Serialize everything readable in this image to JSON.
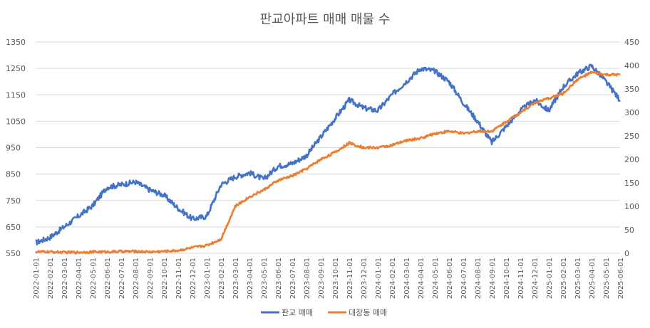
{
  "chart_data": {
    "type": "line",
    "title": "판교아파트 매매 매물 수",
    "x": [
      "2022-01-01",
      "2022-02-01",
      "2022-03-01",
      "2022-04-01",
      "2022-05-01",
      "2022-06-01",
      "2022-07-01",
      "2022-08-01",
      "2022-09-01",
      "2022-10-01",
      "2022-11-01",
      "2022-12-01",
      "2023-01-01",
      "2023-02-01",
      "2023-03-01",
      "2023-04-01",
      "2023-05-01",
      "2023-06-01",
      "2023-07-01",
      "2023-08-01",
      "2023-09-01",
      "2023-10-01",
      "2023-11-01",
      "2023-12-01",
      "2024-01-01",
      "2024-02-01",
      "2024-03-01",
      "2024-04-01",
      "2024-05-01",
      "2024-06-01",
      "2024-07-01",
      "2024-08-01",
      "2024-09-01",
      "2024-10-01",
      "2024-11-01",
      "2024-12-01",
      "2025-01-01",
      "2025-02-01",
      "2025-03-01",
      "2025-04-01",
      "2025-05-01",
      "2025-06-01"
    ],
    "series": [
      {
        "name": "판교 매매",
        "axis": "left",
        "color": "#4472C4",
        "values": [
          590,
          610,
          650,
          690,
          730,
          800,
          810,
          820,
          790,
          770,
          720,
          680,
          690,
          810,
          840,
          855,
          830,
          880,
          890,
          920,
          990,
          1060,
          1130,
          1100,
          1090,
          1150,
          1200,
          1250,
          1240,
          1200,
          1120,
          1050,
          970,
          1030,
          1090,
          1130,
          1090,
          1180,
          1230,
          1260,
          1200,
          1130
        ]
      },
      {
        "name": "대장동 매매",
        "axis": "right",
        "color": "#ED7D31",
        "values": [
          3,
          3,
          2,
          2,
          3,
          3,
          4,
          4,
          3,
          4,
          6,
          12,
          17,
          30,
          100,
          120,
          135,
          155,
          165,
          180,
          200,
          215,
          235,
          225,
          225,
          230,
          240,
          245,
          255,
          260,
          255,
          260,
          260,
          280,
          300,
          320,
          330,
          340,
          370,
          385,
          380,
          380
        ]
      }
    ],
    "y_left": {
      "min": 550,
      "max": 1350,
      "ticks": [
        "550",
        "650",
        "750",
        "850",
        "950",
        "1050",
        "1150",
        "1250",
        "1350"
      ]
    },
    "y_right": {
      "min": 0,
      "max": 450,
      "ticks": [
        "0",
        "50",
        "100",
        "150",
        "200",
        "250",
        "300",
        "350",
        "400",
        "450"
      ]
    },
    "legend_position": "bottom",
    "grid": true,
    "grid_color": "#D9D9D9"
  }
}
